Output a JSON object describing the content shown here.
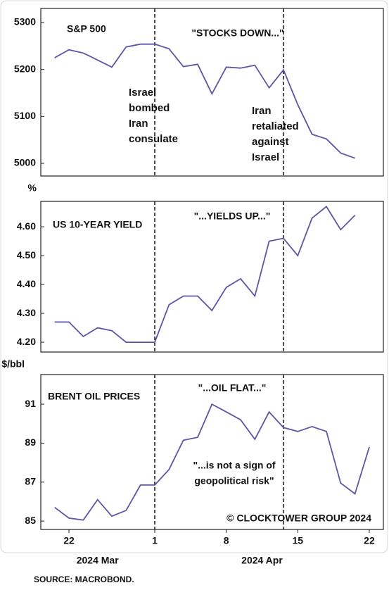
{
  "chart_data": [
    {
      "type": "line",
      "title": "S&P 500",
      "series": [
        {
          "name": "S&P 500",
          "color": "#5a57a6",
          "values": [
            5225,
            5242,
            5235,
            5220,
            5205,
            5248,
            5254,
            5254,
            5244,
            5206,
            5211,
            5148,
            5205,
            5203,
            5209,
            5161,
            5199,
            5125,
            5062,
            5052,
            5022,
            5011,
            null
          ]
        }
      ],
      "ylim": [
        4973,
        5330
      ],
      "yticks": [
        5000,
        5100,
        5200,
        5300
      ],
      "annotations": [
        {
          "text": "\"STOCKS DOWN...\"",
          "color": "#e8242a"
        }
      ]
    },
    {
      "type": "line",
      "title": "US 10-YEAR YIELD",
      "unit": "%",
      "series": [
        {
          "name": "US 10-YEAR YIELD",
          "color": "#5a57a6",
          "values": [
            4.27,
            4.27,
            4.22,
            4.25,
            4.24,
            4.2,
            4.2,
            4.2,
            4.33,
            4.36,
            4.36,
            4.31,
            4.39,
            4.42,
            4.36,
            4.55,
            4.56,
            4.5,
            4.63,
            4.67,
            4.59,
            4.64,
            null
          ]
        }
      ],
      "ylim": [
        4.166,
        4.688
      ],
      "yticks": [
        {
          "value": 4.2,
          "label": "4.20"
        },
        {
          "value": 4.3,
          "label": "4.30"
        },
        {
          "value": 4.4,
          "label": "4.40"
        },
        {
          "value": 4.5,
          "label": "4.50"
        },
        {
          "value": 4.6,
          "label": "4.60"
        }
      ],
      "annotations": [
        {
          "text": "\"...YIELDS UP...\"",
          "color": "#e8242a"
        }
      ]
    },
    {
      "type": "line",
      "title": "BRENT OIL PRICES",
      "unit": "$/bbl",
      "x": [
        "2024-03-21",
        "2024-03-22",
        "2024-03-25",
        "2024-03-26",
        "2024-03-27",
        "2024-03-28",
        "2024-03-29",
        "2024-04-01",
        "2024-04-02",
        "2024-04-03",
        "2024-04-04",
        "2024-04-05",
        "2024-04-08",
        "2024-04-09",
        "2024-04-10",
        "2024-04-11",
        "2024-04-12",
        "2024-04-15",
        "2024-04-16",
        "2024-04-17",
        "2024-04-18",
        "2024-04-19",
        "2024-04-22"
      ],
      "xticks": [
        {
          "value": "2024-03-22",
          "label": "22"
        },
        {
          "value": "2024-04-01",
          "label": "1"
        },
        {
          "value": "2024-04-08",
          "label": "8"
        },
        {
          "value": "2024-04-15",
          "label": "15"
        },
        {
          "value": "2024-04-22",
          "label": "22"
        }
      ],
      "x_groups": [
        "2024 Mar",
        "2024 Apr"
      ],
      "series": [
        {
          "name": "BRENT OIL PRICES",
          "color": "#5a57a6",
          "values": [
            85.7,
            85.15,
            85.05,
            86.1,
            85.25,
            85.55,
            86.85,
            86.85,
            87.65,
            89.15,
            89.3,
            91.0,
            90.6,
            90.2,
            89.2,
            90.6,
            89.8,
            89.6,
            89.85,
            89.6,
            86.95,
            86.4,
            88.8
          ]
        }
      ],
      "ylim": [
        84.57,
        92.52
      ],
      "yticks": [
        85,
        87,
        89,
        91
      ],
      "annotations": [
        {
          "text": "\"...OIL FLAT...\"",
          "color": "#e8242a"
        },
        {
          "text": "\"...is not a sign of",
          "color": "#e8242a"
        },
        {
          "text": "geopolitical risk\"",
          "color": "#e8242a"
        },
        {
          "text": "© CLOCKTOWER GROUP 2024",
          "color": "#111111"
        }
      ]
    }
  ],
  "events": [
    {
      "date": "2024-04-01",
      "lines": [
        "Israel",
        "bombed",
        "Iran",
        "consulate"
      ]
    },
    {
      "date": "2024-04-12",
      "lines": [
        "Iran",
        "retaliated",
        "against",
        "Israel"
      ]
    }
  ],
  "source": "SOURCE: MACROBOND."
}
